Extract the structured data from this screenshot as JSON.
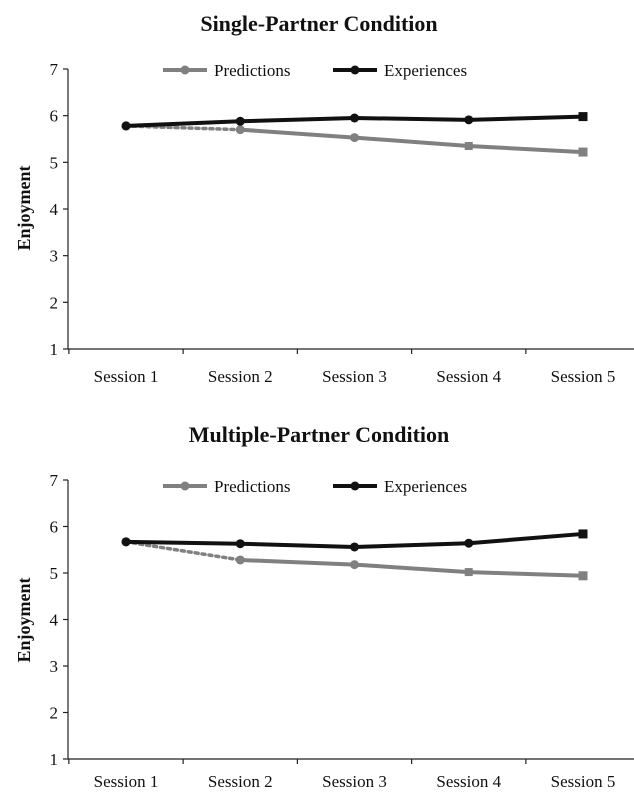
{
  "chart_data": [
    {
      "type": "line",
      "title": "Single-Partner Condition",
      "ylabel": "Enjoyment",
      "xlabel": "",
      "ylim": [
        1,
        7
      ],
      "yticks": [
        "1",
        "2",
        "3",
        "4",
        "5",
        "6",
        "7"
      ],
      "categories": [
        "Session 1",
        "Session 2",
        "Session 3",
        "Session 4",
        "Session 5"
      ],
      "legend": "top",
      "series": [
        {
          "name": "Predictions",
          "color": "#808080",
          "values": [
            5.78,
            5.7,
            5.53,
            5.35,
            5.22
          ],
          "first_segment_dotted": true
        },
        {
          "name": "Experiences",
          "color": "#111111",
          "values": [
            5.78,
            5.88,
            5.95,
            5.91,
            5.98
          ]
        }
      ]
    },
    {
      "type": "line",
      "title": "Multiple-Partner Condition",
      "ylabel": "Enjoyment",
      "xlabel": "",
      "ylim": [
        1,
        7
      ],
      "yticks": [
        "1",
        "2",
        "3",
        "4",
        "5",
        "6",
        "7"
      ],
      "categories": [
        "Session 1",
        "Session 2",
        "Session 3",
        "Session 4",
        "Session 5"
      ],
      "legend": "top",
      "series": [
        {
          "name": "Predictions",
          "color": "#808080",
          "values": [
            5.67,
            5.28,
            5.18,
            5.02,
            4.94
          ],
          "first_segment_dotted": true
        },
        {
          "name": "Experiences",
          "color": "#111111",
          "values": [
            5.67,
            5.63,
            5.56,
            5.64,
            5.84
          ]
        }
      ]
    }
  ]
}
